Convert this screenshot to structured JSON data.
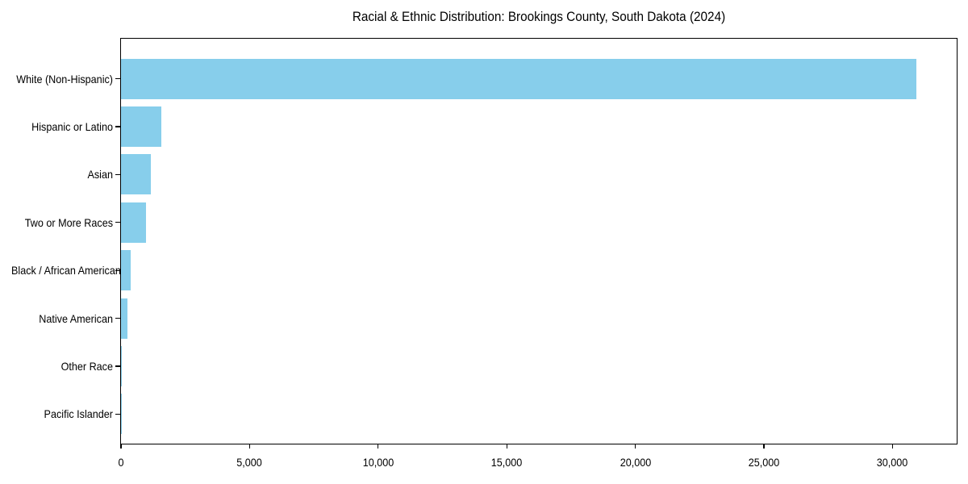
{
  "figure": {
    "title": "Racial & Ethnic Distribution: Brookings County, South Dakota (2024)",
    "background_color": "#ffffff",
    "axis_color": "#000000",
    "text_color": "#000000"
  },
  "chart_data": {
    "type": "bar",
    "orientation": "horizontal",
    "title": "Racial & Ethnic Distribution: Brookings County, South Dakota (2024)",
    "categories": [
      "White (Non-Hispanic)",
      "Hispanic or Latino",
      "Asian",
      "Two or More Races",
      "Black / African American",
      "Native American",
      "Other Race",
      "Pacific Islander"
    ],
    "values": [
      30940,
      1575,
      1150,
      960,
      375,
      250,
      30,
      10
    ],
    "bar_color": "#87CEEB",
    "xlabel": "",
    "ylabel": "",
    "xlim": [
      0,
      32500
    ],
    "x_ticks": [
      0,
      5000,
      10000,
      15000,
      20000,
      25000,
      30000
    ],
    "x_tick_labels": [
      "0",
      "5,000",
      "10,000",
      "15,000",
      "20,000",
      "25,000",
      "30,000"
    ],
    "grid": false,
    "legend": "none",
    "sort_order": "descending"
  }
}
